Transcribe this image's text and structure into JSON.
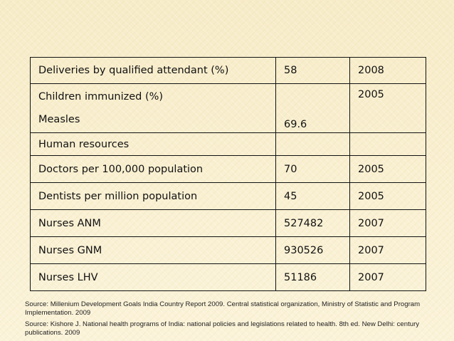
{
  "table": {
    "rows": [
      {
        "label": "Deliveries by qualified attendant (%)",
        "value": "58",
        "year": "2008"
      },
      {
        "label": "Children immunized (%)",
        "sublabel": "Measles",
        "value": "69.6",
        "year": "2005"
      },
      {
        "label": "Human resources",
        "value": "",
        "year": ""
      },
      {
        "label": "Doctors per 100,000 population",
        "value": "70",
        "year": "2005"
      },
      {
        "label": "Dentists per million population",
        "value": "45",
        "year": "2005"
      },
      {
        "label": "Nurses ANM",
        "value": "527482",
        "year": "2007"
      },
      {
        "label": "Nurses GNM",
        "value": "930526",
        "year": "2007"
      },
      {
        "label": "Nurses LHV",
        "value": "51186",
        "year": "2007"
      }
    ]
  },
  "sources": [
    "Source:  Millenium Development  Goals India Country Report 2009. Central statistical organization, Ministry of Statistic and Program Implementation. 2009",
    "Source:  Kishore J. National health programs of India: national policies and legislations related to health. 8th ed. New Delhi: century publications. 2009"
  ],
  "colors": {
    "background": "#f9efcf",
    "border": "#111111",
    "text": "#111111"
  }
}
